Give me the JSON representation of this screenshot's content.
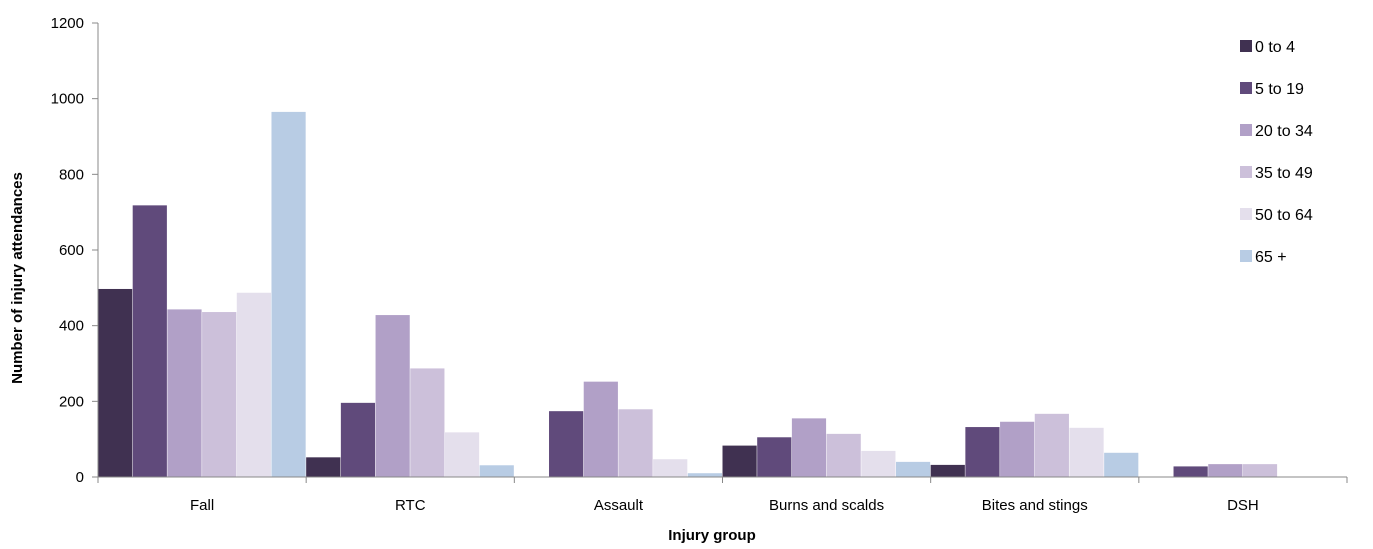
{
  "chart_data": {
    "type": "bar",
    "title": "",
    "xlabel": "Injury group",
    "ylabel": "Number of injury attendances",
    "ylim": [
      0,
      1200
    ],
    "yticks": [
      0,
      200,
      400,
      600,
      800,
      1000,
      1200
    ],
    "grid": false,
    "legend_position": "right",
    "categories": [
      "Fall",
      "RTC",
      "Assault",
      "Burns and scalds",
      "Bites and stings",
      "DSH"
    ],
    "series": [
      {
        "name": "0 to 4",
        "color": "#403151",
        "values": [
          497,
          52,
          0,
          83,
          32,
          0
        ]
      },
      {
        "name": "5 to 19",
        "color": "#604a7b",
        "values": [
          718,
          196,
          174,
          105,
          132,
          28
        ]
      },
      {
        "name": "20 to 34",
        "color": "#b1a0c7",
        "values": [
          443,
          428,
          252,
          155,
          146,
          34
        ]
      },
      {
        "name": "35 to 49",
        "color": "#ccc0da",
        "values": [
          436,
          287,
          179,
          114,
          167,
          34
        ]
      },
      {
        "name": "50 to 64",
        "color": "#e4dfec",
        "values": [
          487,
          118,
          47,
          69,
          130,
          0
        ]
      },
      {
        "name": "65 +",
        "color": "#b8cce4",
        "values": [
          965,
          31,
          10,
          40,
          64,
          0
        ]
      }
    ]
  }
}
